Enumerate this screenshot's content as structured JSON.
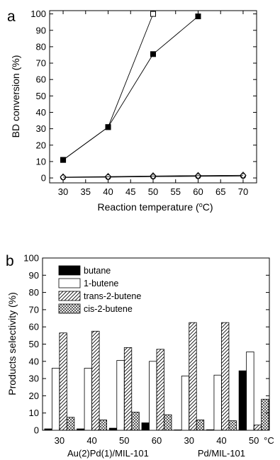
{
  "chart_data": [
    {
      "type": "line",
      "panel_label": "a",
      "xlabel": "Reaction temperature (",
      "xlabel_sup": "o",
      "xlabel_tail": "C)",
      "ylabel": "BD conversion (%)",
      "xlim": [
        27,
        73
      ],
      "ylim": [
        -3,
        102
      ],
      "xticks": [
        30,
        35,
        40,
        45,
        50,
        55,
        60,
        65,
        70
      ],
      "yticks": [
        0,
        10,
        20,
        30,
        40,
        50,
        60,
        70,
        80,
        90,
        100
      ],
      "series": [
        {
          "marker": "open-square",
          "x": [
            30,
            40,
            50
          ],
          "y": [
            11,
            31,
            100
          ]
        },
        {
          "marker": "filled-square",
          "x": [
            30,
            40,
            50,
            60
          ],
          "y": [
            11,
            31,
            75.5,
            98.5
          ]
        },
        {
          "marker": "open-circle",
          "x": [
            30,
            40,
            50,
            60,
            70
          ],
          "y": [
            0.3,
            0.5,
            0.8,
            1.0,
            1.2
          ]
        },
        {
          "marker": "open-diamond",
          "x": [
            30,
            40,
            50,
            60,
            70
          ],
          "y": [
            0.5,
            0.8,
            1.2,
            1.4,
            1.6
          ]
        }
      ]
    },
    {
      "type": "bar",
      "panel_label": "b",
      "ylabel": "Products selectivity (%)",
      "ylim": [
        0,
        100
      ],
      "yticks": [
        0,
        10,
        20,
        30,
        40,
        50,
        60,
        70,
        80,
        90,
        100
      ],
      "categories": [
        "30",
        "40",
        "50",
        "60",
        "30",
        "40",
        "50"
      ],
      "unit_label": "°C",
      "groups": [
        {
          "label": "Au(2)Pd(1)/MIL-101",
          "categories": [
            "30",
            "40",
            "50",
            "60"
          ]
        },
        {
          "label": "Pd/MIL-101",
          "categories": [
            "30",
            "40",
            "50"
          ]
        }
      ],
      "legend_position": "top-left",
      "series": [
        {
          "name": "butane",
          "fill": "solid",
          "values": [
            0.8,
            0.8,
            1.2,
            4.3,
            0.2,
            0.3,
            34.5
          ]
        },
        {
          "name": "1-butene",
          "fill": "empty",
          "values": [
            36,
            36,
            40.5,
            40,
            31.5,
            32,
            45.5
          ]
        },
        {
          "name": "trans-2-butene",
          "fill": "hatch",
          "values": [
            56.5,
            57.5,
            48,
            47,
            62.5,
            62.5,
            3
          ]
        },
        {
          "name": "cis-2-butene",
          "fill": "crosshatch",
          "values": [
            7.5,
            6,
            10.5,
            9,
            6,
            5.5,
            18
          ]
        }
      ]
    }
  ]
}
